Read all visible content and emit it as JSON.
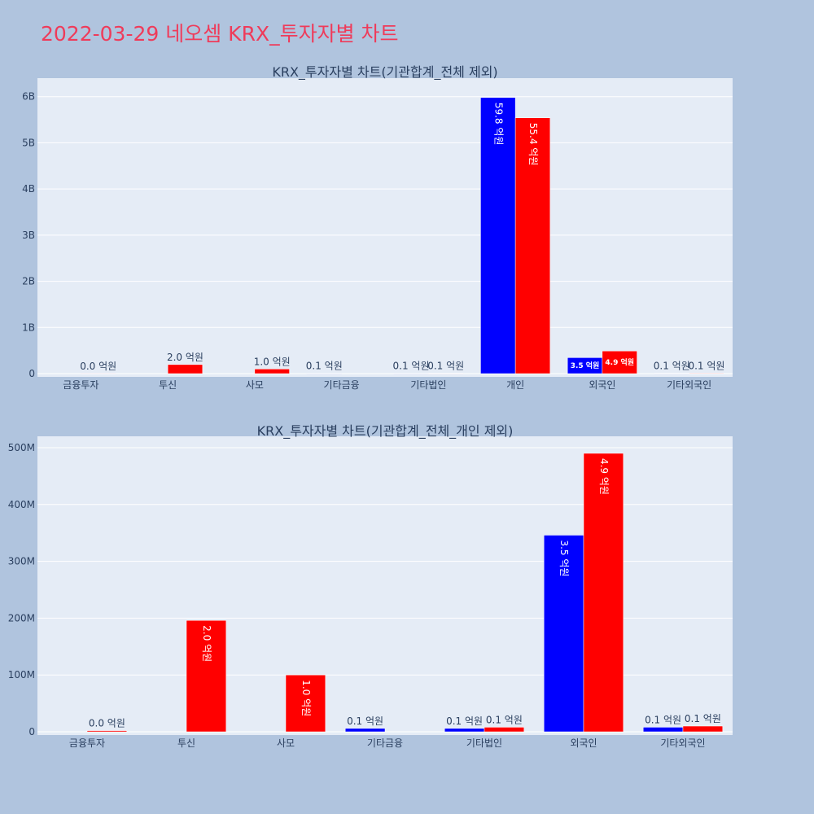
{
  "page_title": "2022-03-29 네오셈 KRX_투자자별 차트",
  "colors": {
    "buy": "#0000ff",
    "sell": "#ff0000",
    "plot_bg": "#e5ecf6",
    "page_bg": "#b0c4de",
    "title": "#ef3b5a",
    "grid": "#ffffff",
    "text": "#2a3f5f"
  },
  "chart_data": [
    {
      "type": "bar",
      "title": "KRX_투자자별 차트(기관합계_전체 제외)",
      "categories": [
        "금융투자",
        "투신",
        "사모",
        "기타금융",
        "기타법인",
        "개인",
        "외국인",
        "기타외국인"
      ],
      "ylim": [
        0,
        6400000000
      ],
      "yticks": [
        0,
        1000000000,
        2000000000,
        3000000000,
        4000000000,
        5000000000,
        6000000000
      ],
      "ytick_labels": [
        "0",
        "1B",
        "2B",
        "3B",
        "4B",
        "5B",
        "6B"
      ],
      "grid": true,
      "series": [
        {
          "color": "#0000ff",
          "values": [
            0,
            0,
            0,
            6000000,
            6000000,
            5980000000,
            346000000,
            8000000
          ],
          "labels": [
            "",
            "",
            "",
            "0.1 억원",
            "0.1 억원",
            "59.8 억원",
            "3.5 억원",
            "0.1 억원"
          ]
        },
        {
          "color": "#ff0000",
          "values": [
            2000000,
            196000000,
            100000000,
            0,
            8000000,
            5540000000,
            490000000,
            10000000
          ],
          "labels": [
            "0.0 억원",
            "2.0 억원",
            "1.0 억원",
            "",
            "0.1 억원",
            "55.4 억원",
            "4.9 억원",
            "0.1 억원"
          ]
        }
      ]
    },
    {
      "type": "bar",
      "title": "KRX_투자자별 차트(기관합계_전체_개인 제외)",
      "categories": [
        "금융투자",
        "투신",
        "사모",
        "기타금융",
        "기타법인",
        "외국인",
        "기타외국인"
      ],
      "ylim": [
        0,
        520000000
      ],
      "yticks": [
        0,
        100000000,
        200000000,
        300000000,
        400000000,
        500000000
      ],
      "ytick_labels": [
        "0",
        "100M",
        "200M",
        "300M",
        "400M",
        "500M"
      ],
      "grid": true,
      "series": [
        {
          "color": "#0000ff",
          "values": [
            0,
            0,
            0,
            6000000,
            6000000,
            346000000,
            8000000
          ],
          "labels": [
            "",
            "",
            "",
            "0.1 억원",
            "0.1 억원",
            "3.5 억원",
            "0.1 억원"
          ]
        },
        {
          "color": "#ff0000",
          "values": [
            2000000,
            196000000,
            100000000,
            0,
            8000000,
            490000000,
            10000000
          ],
          "labels": [
            "0.0 억원",
            "2.0 억원",
            "1.0 억원",
            "",
            "0.1 억원",
            "4.9 억원",
            "0.1 억원"
          ]
        }
      ]
    }
  ]
}
